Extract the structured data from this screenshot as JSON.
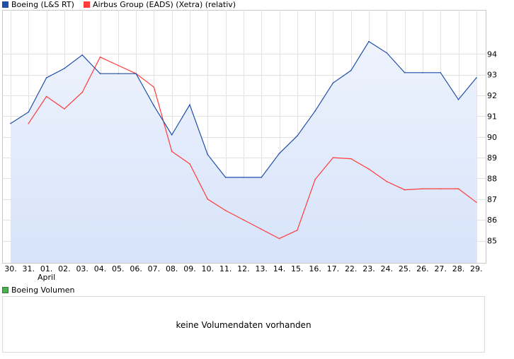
{
  "legend": {
    "series": [
      {
        "label": "Boeing (L&S RT)",
        "color": "#1f4fa8"
      },
      {
        "label": "Airbus Group (EADS) (Xetra) (relativ)",
        "color": "#ff3b3b"
      }
    ],
    "volume_label": "Boeing Volumen",
    "volume_color": "#4caf50"
  },
  "volume_panel": {
    "message": "keine Volumendaten vorhanden"
  },
  "chart_data": {
    "type": "line",
    "categories": [
      "30.",
      "31.",
      "01.",
      "02.",
      "03.",
      "04.",
      "05.",
      "06.",
      "07.",
      "08.",
      "09.",
      "10.",
      "11.",
      "12.",
      "13.",
      "14.",
      "15.",
      "16.",
      "17.",
      "22.",
      "23.",
      "24.",
      "25.",
      "26.",
      "27.",
      "28.",
      "29."
    ],
    "month_label": {
      "at": "01.",
      "text": "April"
    },
    "ylim": [
      84,
      95
    ],
    "yticks": [
      85,
      86,
      87,
      88,
      89,
      90,
      91,
      92,
      93,
      94
    ],
    "y_axis_position": "right",
    "grid": true,
    "legend_position": "top-left",
    "series": [
      {
        "name": "Boeing (L&S RT)",
        "color": "#1f4fa8",
        "fill": true,
        "values": [
          90.65,
          91.2,
          92.85,
          93.3,
          93.95,
          93.05,
          93.05,
          93.05,
          91.5,
          90.1,
          91.55,
          89.15,
          88.05,
          88.05,
          88.05,
          89.2,
          90.05,
          91.25,
          92.6,
          93.2,
          94.6,
          94.05,
          93.1,
          93.1,
          93.1,
          91.8,
          92.85
        ]
      },
      {
        "name": "Airbus Group (EADS) (Xetra) (relativ)",
        "color": "#ff3b3b",
        "fill": false,
        "values": [
          null,
          90.65,
          91.95,
          91.35,
          92.15,
          93.85,
          93.45,
          93.05,
          92.4,
          89.3,
          88.7,
          87.0,
          86.45,
          86.0,
          85.55,
          85.1,
          85.5,
          87.95,
          89.0,
          88.95,
          88.45,
          87.85,
          87.45,
          87.5,
          87.5,
          87.5,
          86.85
        ]
      }
    ]
  }
}
